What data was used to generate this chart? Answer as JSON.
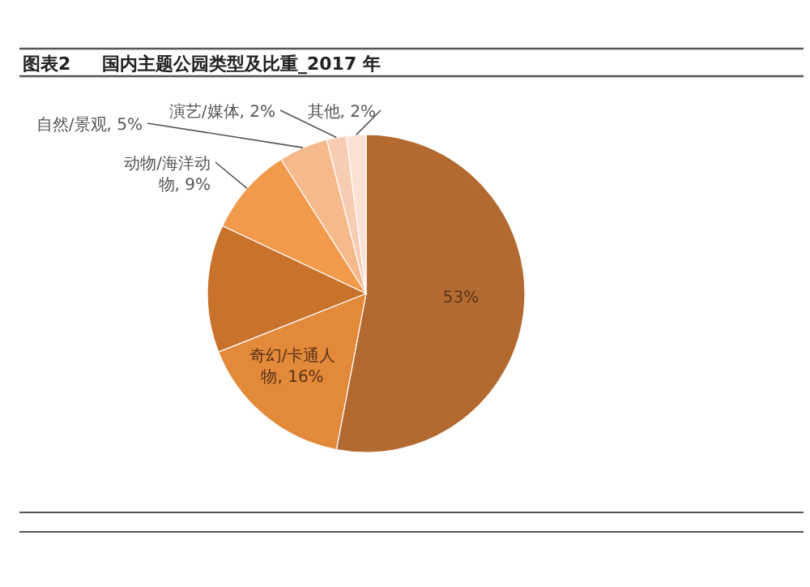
{
  "chart_data": {
    "type": "pie",
    "title": "图表2",
    "subtitle": "国内主题公园类型及比重_2017 年",
    "categories": [
      null,
      "奇幻/卡通人物",
      null,
      "动物/海洋动物",
      "自然/景观",
      "演艺/媒体",
      "其他"
    ],
    "values": [
      53,
      16,
      13,
      9,
      5,
      2,
      2
    ],
    "value_labels": [
      "53%",
      "16%",
      null,
      "9%",
      "5%",
      "2%",
      "2%"
    ],
    "colors": [
      "#b36a30",
      "#e3893a",
      "#c8722c",
      "#f29a4c",
      "#f6b98c",
      "#f8ccb2",
      "#fbe1d3"
    ]
  }
}
